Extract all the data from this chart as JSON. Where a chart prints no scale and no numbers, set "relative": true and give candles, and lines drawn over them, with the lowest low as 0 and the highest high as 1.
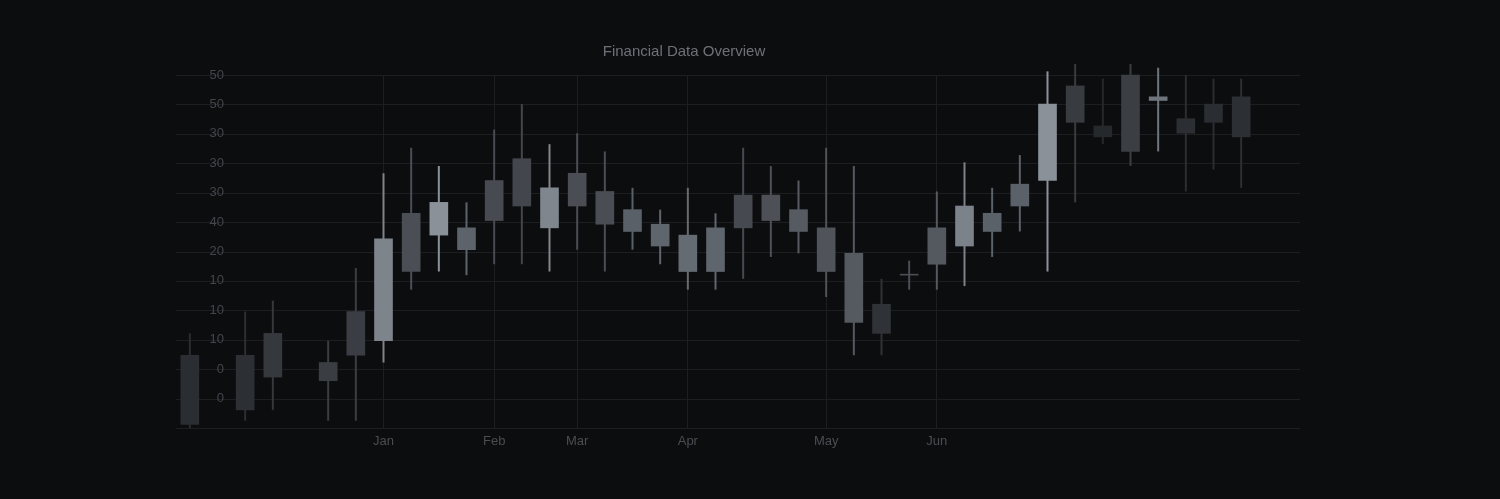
{
  "chart_data": {
    "type": "candlestick",
    "title": "Financial Data Overview",
    "relative": true,
    "categories": [
      null,
      null,
      null,
      null,
      null,
      null,
      null,
      "Jan",
      null,
      null,
      null,
      "Feb",
      null,
      null,
      "Mar",
      null,
      null,
      null,
      "Apr",
      null,
      null,
      null,
      null,
      "May",
      null,
      null,
      null,
      "Jun",
      null,
      null,
      null,
      null,
      null,
      null,
      null,
      null,
      null,
      null,
      null
    ],
    "ohlc": [
      [
        0.2,
        0.26,
        0.0,
        0.01
      ],
      null,
      [
        0.2,
        0.32,
        0.02,
        0.05
      ],
      [
        0.26,
        0.35,
        0.05,
        0.14
      ],
      null,
      [
        0.18,
        0.24,
        0.02,
        0.13
      ],
      [
        0.32,
        0.44,
        0.02,
        0.2
      ],
      [
        0.24,
        0.7,
        0.18,
        0.52
      ],
      [
        0.59,
        0.77,
        0.38,
        0.43
      ],
      [
        0.53,
        0.72,
        0.43,
        0.62
      ],
      [
        0.55,
        0.62,
        0.42,
        0.49
      ],
      [
        0.68,
        0.82,
        0.45,
        0.57
      ],
      [
        0.74,
        0.89,
        0.45,
        0.61
      ],
      [
        0.55,
        0.78,
        0.43,
        0.66
      ],
      [
        0.7,
        0.81,
        0.49,
        0.61
      ],
      [
        0.65,
        0.76,
        0.43,
        0.56
      ],
      [
        0.6,
        0.66,
        0.49,
        0.54
      ],
      [
        0.5,
        0.6,
        0.45,
        0.56
      ],
      [
        0.43,
        0.66,
        0.38,
        0.53
      ],
      [
        0.43,
        0.59,
        0.38,
        0.55
      ],
      [
        0.64,
        0.77,
        0.41,
        0.55
      ],
      [
        0.64,
        0.72,
        0.47,
        0.57
      ],
      [
        0.6,
        0.68,
        0.48,
        0.54
      ],
      [
        0.55,
        0.77,
        0.36,
        0.43
      ],
      [
        0.48,
        0.72,
        0.2,
        0.29
      ],
      [
        0.34,
        0.41,
        0.2,
        0.26
      ],
      [
        0.42,
        0.46,
        0.38,
        0.42
      ],
      [
        0.45,
        0.65,
        0.38,
        0.55
      ],
      [
        0.5,
        0.73,
        0.39,
        0.61
      ],
      [
        0.54,
        0.66,
        0.47,
        0.59
      ],
      [
        0.61,
        0.75,
        0.54,
        0.67
      ],
      [
        0.68,
        0.98,
        0.43,
        0.89
      ],
      [
        0.94,
        1.0,
        0.62,
        0.84
      ],
      [
        0.83,
        0.96,
        0.78,
        0.8
      ],
      [
        0.97,
        1.0,
        0.72,
        0.76
      ],
      [
        0.9,
        0.99,
        0.76,
        0.91
      ],
      [
        0.85,
        0.97,
        0.65,
        0.81
      ],
      [
        0.89,
        0.96,
        0.71,
        0.84
      ],
      [
        0.91,
        0.96,
        0.66,
        0.8
      ]
    ],
    "colors": [
      "#2a2d31",
      null,
      "#2c2f33",
      "#35383d",
      null,
      "#3a3d42",
      "#3a3e44",
      "#7d848c",
      "#4a4e55",
      "#8a9199",
      "#5d636a",
      "#474b51",
      "#43474d",
      "#7f868e",
      "#4a4e54",
      "#4a4e54",
      "#5a6067",
      "#5f656c",
      "#656b72",
      "#5f656c",
      "#464a50",
      "#4d5157",
      "#565b62",
      "#4f545a",
      "#555a61",
      "#2f3236",
      "#4a4e54",
      "#545960",
      "#7b828a",
      "#5b6168",
      "#5b6168",
      "#8a9199",
      "#383b40",
      "#26292c",
      "#3b3e43",
      "#6f757c",
      "#2b2e32",
      "#2a2d31",
      "#2c2f33"
    ],
    "annotations": [
      "50",
      "50",
      "30",
      "30",
      "30",
      "40",
      "20",
      "10",
      "10",
      "10",
      "0",
      "0"
    ],
    "grid": true
  }
}
